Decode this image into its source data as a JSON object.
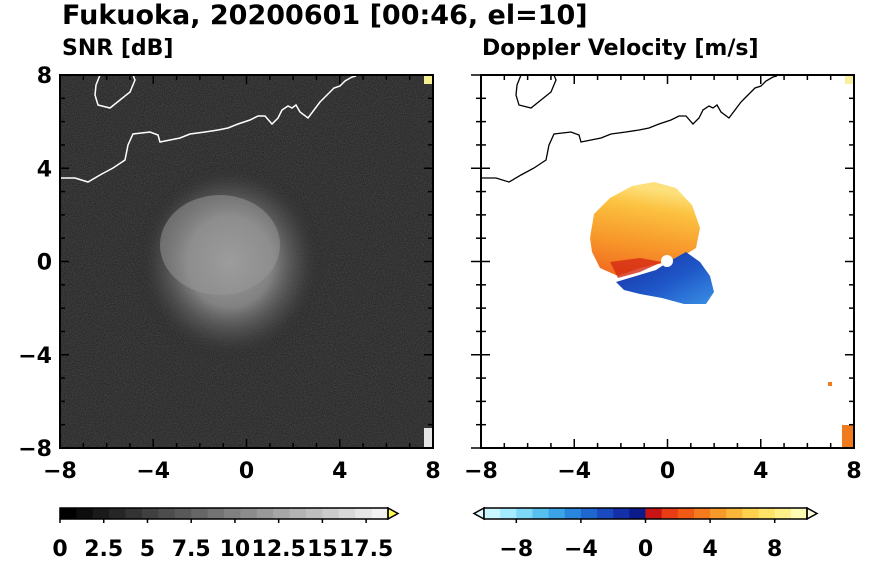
{
  "title": "Fukuoka, 20200601 [00:46, el=10]",
  "panels": [
    {
      "id": "snr",
      "label": "SNR [dB]",
      "colors": {
        "background": "#1a1a1a",
        "echo": "#8a8a8a"
      }
    },
    {
      "id": "doppler",
      "label": "Doppler Velocity [m/s]",
      "colors": {
        "background": "#ffffff",
        "towards": "#1f5fd6",
        "away": "#f5a623"
      }
    }
  ],
  "chart_data": [
    {
      "type": "heatmap",
      "title": "SNR [dB]",
      "xlim": [
        -8,
        8
      ],
      "ylim": [
        -8,
        8
      ],
      "x_ticks": [
        "-8",
        "-4",
        "0",
        "4",
        "8"
      ],
      "y_ticks": [
        "8",
        "4",
        "0",
        "-4",
        "-8"
      ],
      "colorbar": {
        "tick_labels": [
          "0",
          "2.5",
          "5",
          "7.5",
          "10",
          "12.5",
          "15",
          "17.5"
        ],
        "range": [
          0,
          18.75
        ],
        "colors": [
          "#000000",
          "#0d0d0d",
          "#1a1a1a",
          "#262626",
          "#333333",
          "#404040",
          "#4d4d4d",
          "#595959",
          "#666666",
          "#737373",
          "#808080",
          "#8c8c8c",
          "#999999",
          "#a6a6a6",
          "#b3b3b3",
          "#bfbfbf",
          "#cccccc",
          "#d9d9d9",
          "#e6e6e6",
          "#f2f2f2"
        ],
        "extend_color": "#ffff55"
      }
    },
    {
      "type": "heatmap",
      "title": "Doppler Velocity [m/s]",
      "xlim": [
        -8,
        8
      ],
      "ylim": [
        -8,
        8
      ],
      "x_ticks": [
        "-8",
        "-4",
        "0",
        "4",
        "8"
      ],
      "y_ticks": [
        "8",
        "4",
        "0",
        "-4",
        "-8"
      ],
      "colorbar": {
        "tick_labels": [
          "-8",
          "-4",
          "0",
          "4",
          "8"
        ],
        "range": [
          -10,
          10
        ],
        "colors": [
          "#c8f7ff",
          "#a6ecff",
          "#7ed8f7",
          "#58c0ef",
          "#3aa4e6",
          "#2a86dc",
          "#1f66cf",
          "#1a4abf",
          "#1430a8",
          "#0c1a8c",
          "#c81414",
          "#e83c14",
          "#f05a14",
          "#f57a1e",
          "#f89a2a",
          "#fbb63a",
          "#fdd04e",
          "#fee466",
          "#fff18a",
          "#fffab4"
        ],
        "extend_low": "#e6fbff",
        "extend_high": "#fffde0"
      }
    }
  ]
}
